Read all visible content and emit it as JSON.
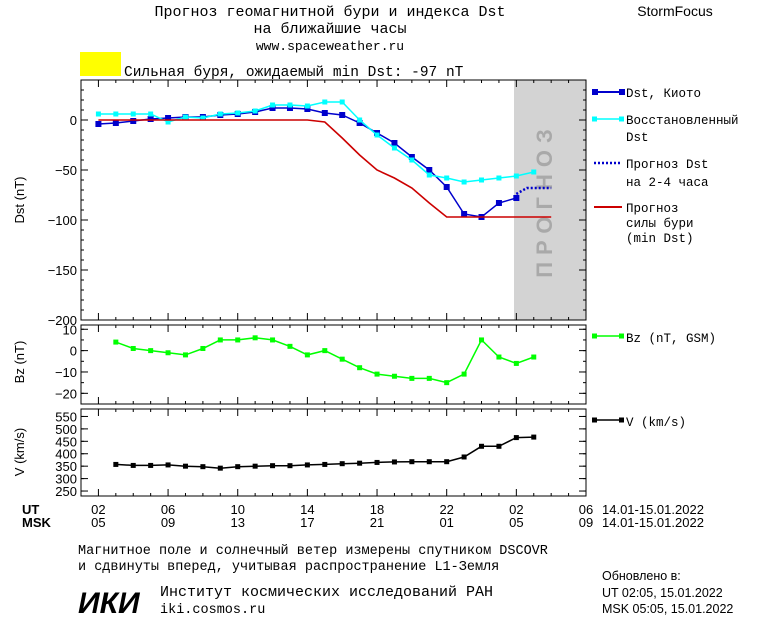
{
  "header": {
    "title_line1": "Прогноз геомагнитной бури и индекса Dst",
    "title_line2": "на ближайшие часы",
    "url": "www.spaceweather.ru",
    "brand": "StormFocus",
    "alert_text": "Сильная буря, ожидаемый min Dst: -97 nT",
    "alert_color": "#ffff00"
  },
  "forecast_band_label": "ПРОГНОЗ",
  "chart_data": [
    {
      "type": "line",
      "ylabel": "Dst (nT)",
      "ylim": [
        -200,
        40
      ],
      "yticks": [
        0,
        -50,
        -100,
        -150,
        -200
      ],
      "x": [
        2,
        3,
        4,
        5,
        6,
        7,
        8,
        9,
        10,
        11,
        12,
        13,
        14,
        15,
        16,
        17,
        18,
        19,
        20,
        21,
        22,
        23,
        24,
        25,
        26,
        27
      ],
      "series": [
        {
          "name": "Dst, Киото",
          "color": "#0000cc",
          "marker": "square",
          "values": [
            -4,
            -3,
            -1,
            1,
            2,
            3,
            3,
            5,
            6,
            8,
            12,
            12,
            11,
            7,
            5,
            -3,
            -13,
            -23,
            -37,
            -50,
            -67,
            -94,
            -97,
            -83,
            -78,
            null
          ]
        },
        {
          "name": "Восстановленный Dst",
          "color": "#00ffff",
          "marker": "square",
          "values": [
            6,
            6,
            6,
            6,
            -2,
            3,
            2,
            6,
            7,
            9,
            15,
            15,
            14,
            18,
            18,
            0,
            -15,
            -28,
            -40,
            -55,
            -58,
            -62,
            -60,
            -58,
            -56,
            -52
          ]
        },
        {
          "name": "Прогноз Dst на 2-4 часа",
          "color": "#0000cc",
          "style": "dotted",
          "x": [
            26,
            26.6,
            27,
            28
          ],
          "values": [
            -74,
            -68,
            -68,
            -68
          ]
        },
        {
          "name": "Прогноз силы бури (min Dst)",
          "color": "#cc0000",
          "x": [
            2,
            3,
            4,
            5,
            6,
            7,
            8,
            9,
            10,
            11,
            12,
            13,
            14,
            15,
            16,
            17,
            18,
            19,
            20,
            21,
            22,
            23,
            24,
            25,
            26,
            27,
            28
          ],
          "values": [
            0,
            0,
            0,
            0,
            0,
            0,
            0,
            0,
            0,
            0,
            0,
            0,
            0,
            -2,
            -18,
            -35,
            -50,
            -58,
            -68,
            -83,
            -97,
            -97,
            -97,
            -97,
            -97,
            -97,
            -97
          ]
        }
      ]
    },
    {
      "type": "line",
      "ylabel": "Bz (nT)",
      "ylim": [
        -25,
        12
      ],
      "yticks": [
        10,
        0,
        -10,
        -20
      ],
      "series": [
        {
          "name": "Bz (nT, GSM)",
          "color": "#00ff00",
          "marker": "square",
          "x": [
            3,
            4,
            5,
            6,
            7,
            8,
            9,
            10,
            11,
            12,
            13,
            14,
            15,
            16,
            17,
            18,
            19,
            20,
            21,
            22,
            23,
            24,
            25,
            26,
            27
          ],
          "values": [
            4,
            1,
            0,
            -1,
            -2,
            1,
            5,
            5,
            6,
            5,
            2,
            -2,
            0,
            -4,
            -8,
            -11,
            -12,
            -13,
            -13,
            -15,
            -11,
            5,
            -3,
            -6,
            -3
          ]
        }
      ]
    },
    {
      "type": "line",
      "ylabel": "V (km/s)",
      "ylim": [
        230,
        580
      ],
      "yticks": [
        250,
        300,
        350,
        400,
        450,
        500,
        550
      ],
      "series": [
        {
          "name": "V (km/s)",
          "color": "#000000",
          "marker": "square",
          "x": [
            3,
            4,
            5,
            6,
            7,
            8,
            9,
            10,
            11,
            12,
            13,
            14,
            15,
            16,
            17,
            18,
            19,
            20,
            21,
            22,
            23,
            24,
            25,
            26,
            27
          ],
          "values": [
            357,
            353,
            353,
            355,
            350,
            348,
            342,
            348,
            350,
            352,
            352,
            355,
            357,
            360,
            362,
            365,
            367,
            368,
            368,
            368,
            387,
            430,
            430,
            465,
            467
          ]
        }
      ]
    }
  ],
  "x_axis": {
    "ut_label": "UT",
    "msk_label": "MSK",
    "tick_hours": [
      2,
      6,
      10,
      14,
      18,
      22,
      26,
      30
    ],
    "ut_ticks": [
      "02",
      "06",
      "10",
      "14",
      "18",
      "22",
      "02",
      "06"
    ],
    "msk_ticks": [
      "05",
      "09",
      "13",
      "17",
      "21",
      "01",
      "05",
      "09"
    ],
    "date_range_ut": "14.01-15.01.2022",
    "date_range_msk": "14.01-15.01.2022"
  },
  "footer": {
    "note_line1": "Магнитное поле и солнечный ветер измерены спутником DSCOVR",
    "note_line2": "и сдвинуты вперед, учитывая распространение L1-Земля",
    "logo": "ИКИ",
    "institute": "Институт космических исследований РАН",
    "institute_url": "iki.cosmos.ru",
    "updated_label": "Обновлено в:",
    "updated_ut": "UT  02:05, 15.01.2022",
    "updated_msk": "MSK 05:05, 15.01.2022"
  },
  "colors": {
    "forecast_band": "#d3d3d3",
    "forecast_band_text": "#a9a9a9"
  }
}
